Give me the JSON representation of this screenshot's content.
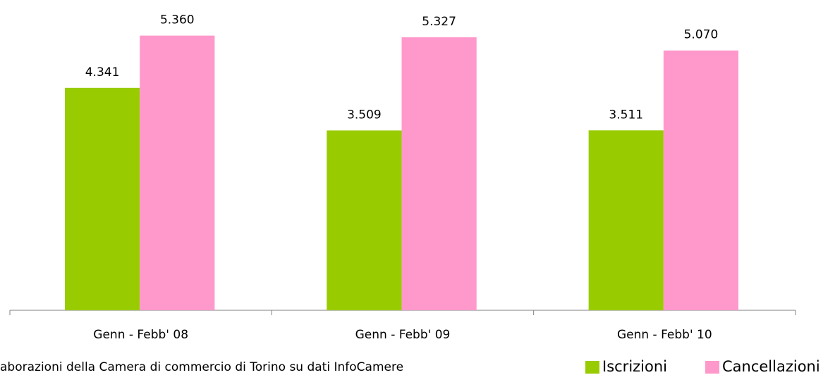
{
  "chart_data": {
    "type": "bar",
    "categories": [
      "Genn - Febb' 08",
      "Genn - Febb' 09",
      "Genn - Febb' 10"
    ],
    "series": [
      {
        "name": "Iscrizioni",
        "color": "#99cc00",
        "values": [
          4341,
          3509,
          3511
        ],
        "value_labels": [
          "4.341",
          "3.509",
          "3.511"
        ]
      },
      {
        "name": "Cancellazioni",
        "color": "#ff99cc",
        "values": [
          5360,
          5327,
          5070
        ],
        "value_labels": [
          "5.360",
          "5.327",
          "5.070"
        ]
      }
    ],
    "ylim": [
      0,
      6000
    ],
    "legend": "bottom-right",
    "source": "aborazioni della Camera di commercio di Torino su dati InfoCamere"
  }
}
